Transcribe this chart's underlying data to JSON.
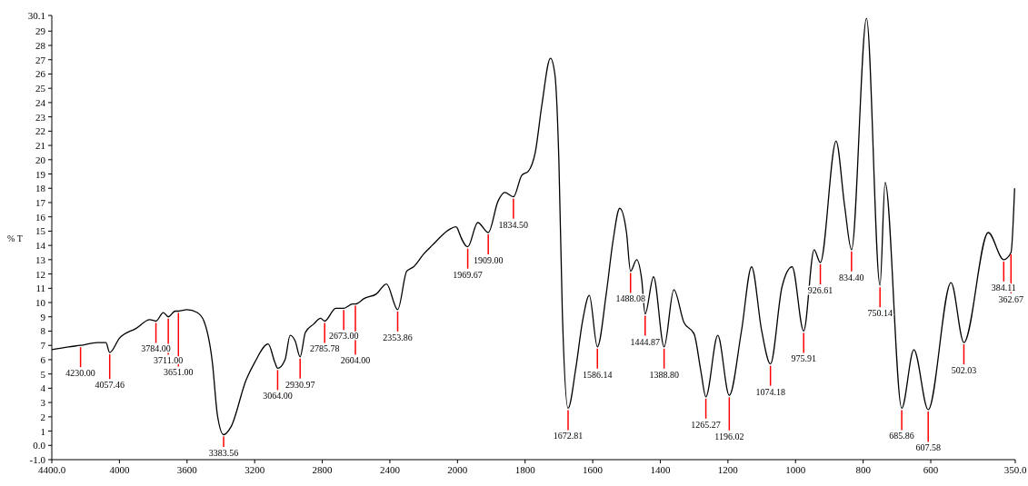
{
  "chart_data": [
    {
      "type": "line",
      "ylabel": "% T",
      "xlim": [
        4400,
        2000
      ],
      "xticks": [
        {
          "value": 4400,
          "label": "4400.0"
        },
        4000,
        3600,
        3200,
        2800,
        2400,
        2000
      ],
      "ylim": [
        -1,
        30.1
      ],
      "yticks": [
        {
          "value": -1,
          "label": "-1.0"
        },
        {
          "value": 0,
          "label": "0.0"
        },
        1,
        2,
        3,
        4,
        5,
        6,
        7,
        8,
        9,
        10,
        11,
        12,
        13,
        14,
        15,
        16,
        17,
        18,
        19,
        20,
        21,
        22,
        23,
        24,
        25,
        26,
        27,
        28,
        29,
        {
          "value": 30.1,
          "label": "30.1"
        }
      ],
      "grid": false,
      "marker": "none",
      "line_style": "solid",
      "series": [
        {
          "color": "#000000",
          "x": [
            4400,
            4300,
            4230,
            4130,
            4080,
            4057.46,
            4000,
            3900,
            3820,
            3784,
            3740,
            3711,
            3670,
            3651,
            3600,
            3540,
            3500,
            3450,
            3420,
            3383.56,
            3340,
            3250,
            3200,
            3120,
            3080,
            3064,
            3020,
            2990,
            2960,
            2930.97,
            2900,
            2850,
            2810,
            2785.78,
            2720,
            2673,
            2620,
            2604,
            2550,
            2480,
            2420,
            2353.86,
            2300,
            2260,
            2200,
            2150,
            2050,
            2010,
            2000
          ],
          "values": [
            6.7,
            6.9,
            7.0,
            7.2,
            7.2,
            6.5,
            7.5,
            8.2,
            8.8,
            8.7,
            9.3,
            9.0,
            9.4,
            9.4,
            9.5,
            9.3,
            8.7,
            5.8,
            2.1,
            0.75,
            1.3,
            4.6,
            5.8,
            7.1,
            5.8,
            5.4,
            6.0,
            7.7,
            7.3,
            6.2,
            7.9,
            8.5,
            8.9,
            8.7,
            9.6,
            9.6,
            9.9,
            9.9,
            10.3,
            10.6,
            11.3,
            9.5,
            12.2,
            12.5,
            13.4,
            14.0,
            15.1,
            15.3,
            15.2
          ]
        }
      ],
      "annotations": [
        {
          "text": "4230.00",
          "x": 4230,
          "y": 7.0
        },
        {
          "text": "4057.46",
          "x": 4057.46,
          "y": 6.5
        },
        {
          "text": "3784.00",
          "x": 3784,
          "y": 8.7
        },
        {
          "text": "3711.00",
          "x": 3711,
          "y": 9.0
        },
        {
          "text": "3651.00",
          "x": 3651,
          "y": 9.4
        },
        {
          "text": "3383.56",
          "x": 3383.56,
          "y": 0.75
        },
        {
          "text": "3064.00",
          "x": 3064,
          "y": 5.4
        },
        {
          "text": "2930.97",
          "x": 2930.97,
          "y": 6.2
        },
        {
          "text": "2785.78",
          "x": 2785.78,
          "y": 8.7
        },
        {
          "text": "2673.00",
          "x": 2673,
          "y": 9.6
        },
        {
          "text": "2604.00",
          "x": 2604,
          "y": 9.9
        },
        {
          "text": "2353.86",
          "x": 2353.86,
          "y": 9.5
        }
      ]
    },
    {
      "type": "line",
      "tick_labels": "x",
      "xlim": [
        2000,
        350
      ],
      "xticks": [
        1800,
        1600,
        1400,
        1200,
        1000,
        800,
        600,
        {
          "value": 350,
          "label": "350.0"
        }
      ],
      "ylim": [
        -1,
        30.1
      ],
      "marker": "none",
      "line_style": "solid",
      "series": [
        {
          "color": "#000000",
          "x": [
            2000,
            1969.67,
            1940,
            1909,
            1880,
            1860,
            1834.5,
            1810,
            1790,
            1770,
            1750,
            1725,
            1712,
            1700,
            1690,
            1672.81,
            1650,
            1630,
            1610,
            1586.14,
            1560,
            1540,
            1520,
            1500,
            1488.08,
            1470,
            1455,
            1444.87,
            1420,
            1388.8,
            1360,
            1330,
            1300,
            1280,
            1265.27,
            1230,
            1196.02,
            1160,
            1130,
            1100,
            1074.18,
            1040,
            1010,
            975.91,
            945,
            926.61,
            880,
            855,
            834.4,
            790,
            750.14,
            735,
            685.86,
            650,
            607.58,
            540,
            502.03,
            430,
            384.11,
            362.67,
            352
          ],
          "values": [
            15.2,
            13.9,
            15.6,
            14.9,
            17.1,
            17.7,
            17.4,
            18.9,
            19.2,
            20.5,
            23.9,
            27.1,
            26.0,
            19.9,
            9.5,
            2.6,
            5.4,
            8.7,
            10.5,
            6.9,
            10.6,
            14.3,
            16.6,
            14.9,
            12.2,
            13.0,
            11.6,
            9.2,
            11.8,
            6.9,
            10.9,
            8.6,
            7.8,
            5.2,
            3.4,
            7.7,
            3.5,
            8.0,
            12.5,
            8.0,
            5.7,
            11.1,
            12.5,
            8.0,
            13.7,
            12.8,
            21.3,
            16.8,
            13.7,
            29.9,
            11.2,
            18.4,
            2.6,
            6.7,
            2.5,
            11.4,
            7.2,
            14.9,
            13.0,
            13.5,
            18.0
          ]
        }
      ],
      "annotations": [
        {
          "text": "1969.67",
          "x": 1969.67,
          "y": 13.9
        },
        {
          "text": "1909.00",
          "x": 1909,
          "y": 14.9
        },
        {
          "text": "1834.50",
          "x": 1834.5,
          "y": 17.4
        },
        {
          "text": "1672.81",
          "x": 1672.81,
          "y": 2.6
        },
        {
          "text": "1586.14",
          "x": 1586.14,
          "y": 6.9
        },
        {
          "text": "1488.08",
          "x": 1488.08,
          "y": 12.2
        },
        {
          "text": "1444.87",
          "x": 1444.87,
          "y": 9.2
        },
        {
          "text": "1388.80",
          "x": 1388.8,
          "y": 6.9
        },
        {
          "text": "1265.27",
          "x": 1265.27,
          "y": 3.4
        },
        {
          "text": "1196.02",
          "x": 1196.02,
          "y": 3.5
        },
        {
          "text": "1074.18",
          "x": 1074.18,
          "y": 5.7
        },
        {
          "text": "975.91",
          "x": 975.91,
          "y": 8.0
        },
        {
          "text": "926.61",
          "x": 926.61,
          "y": 12.8
        },
        {
          "text": "834.40",
          "x": 834.4,
          "y": 13.7
        },
        {
          "text": "750.14",
          "x": 750.14,
          "y": 11.2
        },
        {
          "text": "685.86",
          "x": 685.86,
          "y": 2.6
        },
        {
          "text": "607.58",
          "x": 607.58,
          "y": 2.5
        },
        {
          "text": "502.03",
          "x": 502.03,
          "y": 7.2
        },
        {
          "text": "384.11",
          "x": 384.11,
          "y": 13.0
        },
        {
          "text": "362.67",
          "x": 362.67,
          "y": 13.5
        }
      ]
    }
  ]
}
